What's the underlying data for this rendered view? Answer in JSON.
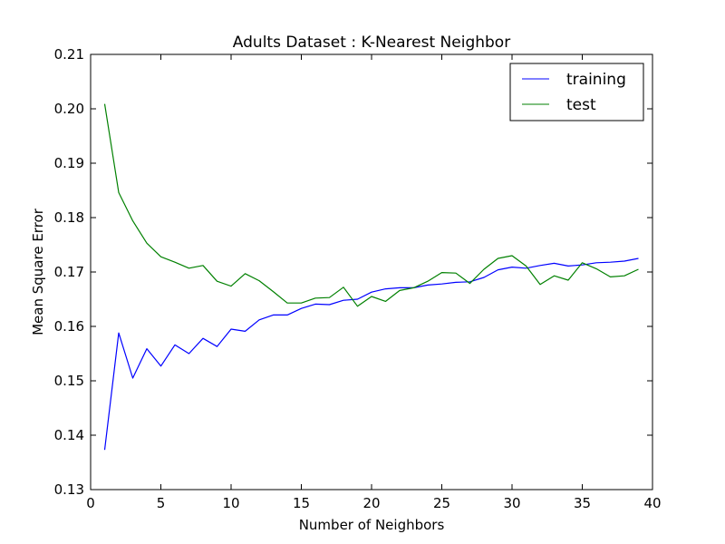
{
  "chart_data": {
    "type": "line",
    "title": "Adults Dataset : K-Nearest Neighbor",
    "xlabel": "Number of Neighbors",
    "ylabel": "Mean Square Error",
    "xlim": [
      0,
      40
    ],
    "ylim": [
      0.13,
      0.21
    ],
    "xticks": [
      "0",
      "5",
      "10",
      "15",
      "20",
      "25",
      "30",
      "35",
      "40"
    ],
    "yticks": [
      "0.13",
      "0.14",
      "0.15",
      "0.16",
      "0.17",
      "0.18",
      "0.19",
      "0.20",
      "0.21"
    ],
    "legend_position": "top-right",
    "grid": false,
    "x": [
      1,
      2,
      3,
      4,
      5,
      6,
      7,
      8,
      9,
      10,
      11,
      12,
      13,
      14,
      15,
      16,
      17,
      18,
      19,
      20,
      21,
      22,
      23,
      24,
      25,
      26,
      27,
      28,
      29,
      30,
      31,
      32,
      33,
      34,
      35,
      36,
      37,
      38,
      39
    ],
    "series": [
      {
        "name": "training",
        "color": "#0000ff",
        "values": [
          0.1373,
          0.1588,
          0.1505,
          0.1559,
          0.1527,
          0.1566,
          0.155,
          0.1578,
          0.1563,
          0.1595,
          0.1591,
          0.1612,
          0.1621,
          0.1621,
          0.1633,
          0.1641,
          0.164,
          0.1648,
          0.165,
          0.1663,
          0.1669,
          0.1671,
          0.1671,
          0.1676,
          0.1678,
          0.1681,
          0.1682,
          0.169,
          0.1704,
          0.1709,
          0.1707,
          0.1712,
          0.1716,
          0.1711,
          0.1713,
          0.1717,
          0.1718,
          0.172,
          0.1725
        ]
      },
      {
        "name": "test",
        "color": "#008000",
        "values": [
          0.2009,
          0.1846,
          0.1794,
          0.1753,
          0.1728,
          0.1718,
          0.1707,
          0.1712,
          0.1683,
          0.1674,
          0.1697,
          0.1684,
          0.1664,
          0.1643,
          0.1643,
          0.1652,
          0.1653,
          0.1672,
          0.1637,
          0.1655,
          0.1646,
          0.1666,
          0.1671,
          0.1683,
          0.1699,
          0.1698,
          0.1679,
          0.1705,
          0.1725,
          0.173,
          0.1711,
          0.1677,
          0.1693,
          0.1685,
          0.1717,
          0.1706,
          0.1691,
          0.1693,
          0.1705
        ]
      }
    ]
  }
}
